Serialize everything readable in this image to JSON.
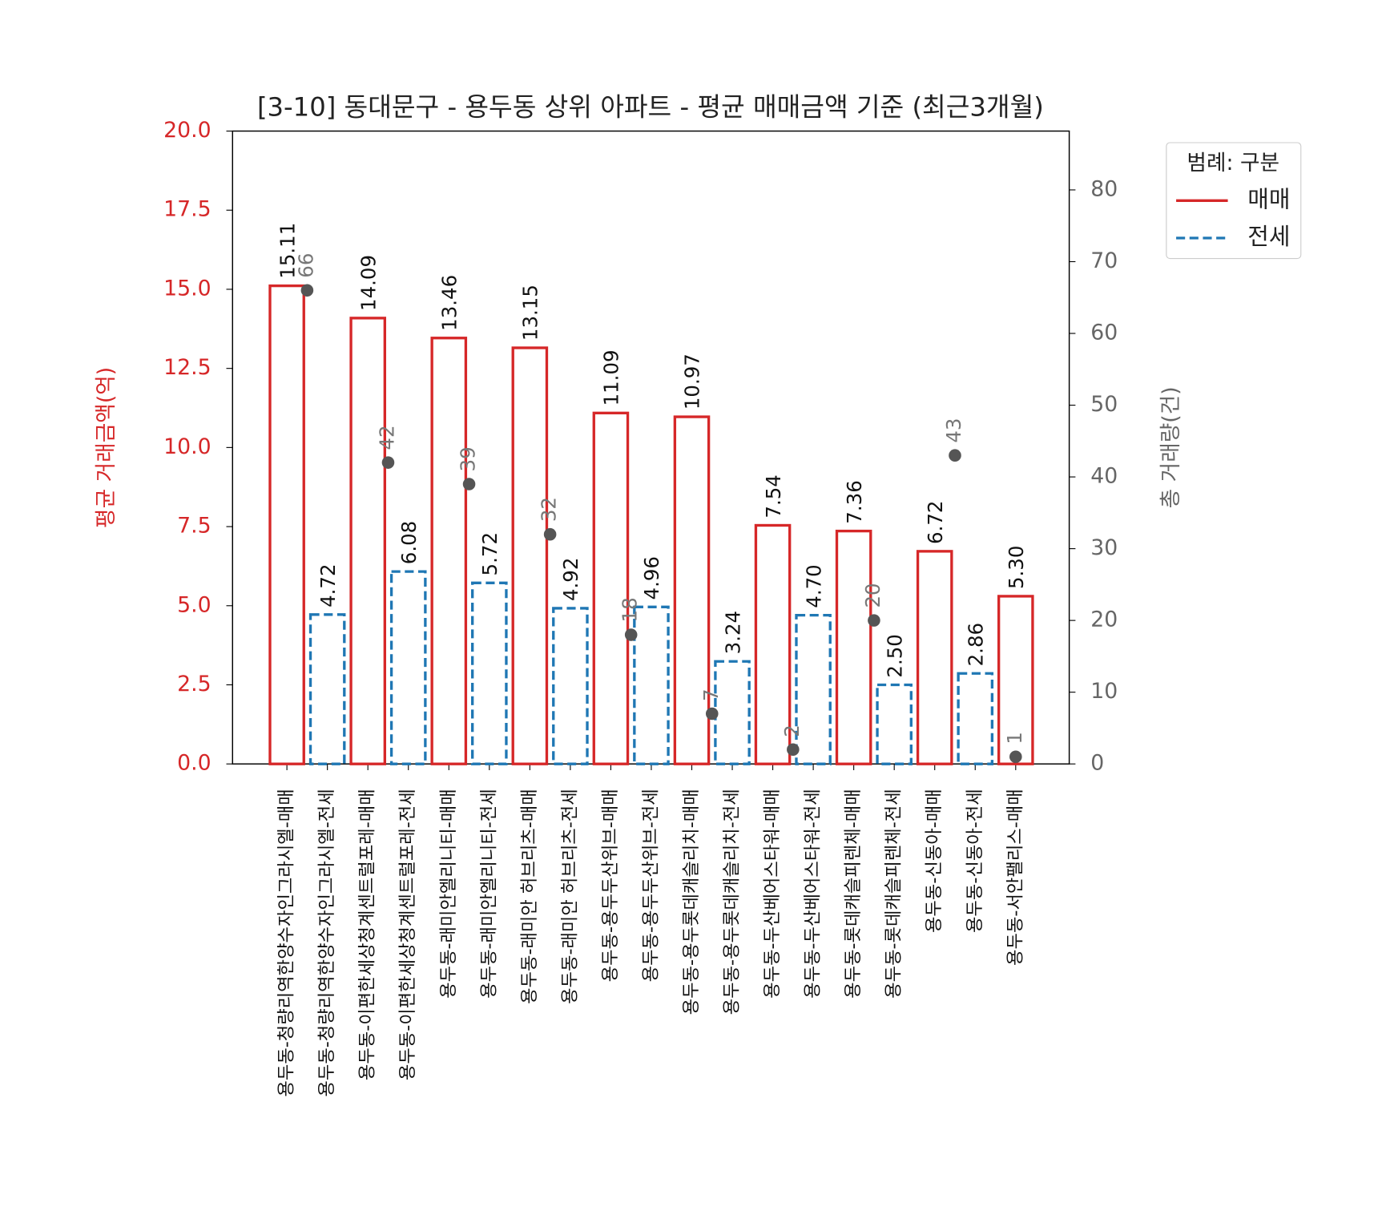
{
  "chart_data": {
    "type": "bar",
    "title": "[3-10] 동대문구 - 용두동 상위 아파트 - 평균 매매금액 기준 (최근3개월)",
    "y_label": "평균 거래금액(억)",
    "y2_label": "총 거래량(건)",
    "legend_title": "범례: 구분",
    "legend": "upper right outside",
    "categories": [
      "용두동-청량리역한양수자인그라시엘-매매",
      "용두동-청량리역한양수자인그라시엘-전세",
      "용두동-이편한세상청계센트럴포레-매매",
      "용두동-이편한세상청계센트럴포레-전세",
      "용두동-래미안엘리니티-매매",
      "용두동-래미안엘리니티-전세",
      "용두동-래미안 허브리츠-매매",
      "용두동-래미안 허브리츠-전세",
      "용두동-용두두산위브-매매",
      "용두동-용두두산위브-전세",
      "용두동-용두롯데캐슬리치-매매",
      "용두동-용두롯데캐슬리치-전세",
      "용두동-두산베어스타워-매매",
      "용두동-두산베어스타워-전세",
      "용두동-롯데캐슬피렌체-매매",
      "용두동-롯데캐슬피렌체-전세",
      "용두동-신동아-매매",
      "용두동-신동아-전세",
      "용두동-서안팰리스-매매"
    ],
    "series": [
      {
        "name": "매매",
        "color": "#d62728",
        "dashed": false,
        "values": [
          15.11,
          null,
          14.09,
          null,
          13.46,
          null,
          13.15,
          null,
          11.09,
          null,
          10.97,
          null,
          7.54,
          null,
          7.36,
          null,
          6.72,
          null,
          5.3
        ],
        "value_labels": [
          "15.11",
          null,
          "14.09",
          null,
          "13.46",
          null,
          "13.15",
          null,
          "11.09",
          null,
          "10.97",
          null,
          "7.54",
          null,
          "7.36",
          null,
          "6.72",
          null,
          "5.30"
        ]
      },
      {
        "name": "전세",
        "color": "#1f77b4",
        "dashed": true,
        "values": [
          null,
          4.72,
          null,
          6.08,
          null,
          5.72,
          null,
          4.92,
          null,
          4.96,
          null,
          3.24,
          null,
          4.7,
          null,
          2.5,
          null,
          2.86,
          null
        ],
        "value_labels": [
          null,
          "4.72",
          null,
          "6.08",
          null,
          "5.72",
          null,
          "4.92",
          null,
          "4.96",
          null,
          "3.24",
          null,
          "4.70",
          null,
          "2.50",
          null,
          "2.86",
          null
        ]
      }
    ],
    "volume": {
      "axis": "y2",
      "color": "#555555",
      "values": [
        66,
        42,
        39,
        32,
        18,
        7,
        2,
        20,
        43,
        1
      ]
    },
    "ylim": [
      0,
      20
    ],
    "yticks": [
      {
        "value": 0,
        "label": "0.0"
      },
      {
        "value": 2.5,
        "label": "2.5"
      },
      {
        "value": 5,
        "label": "5.0"
      },
      {
        "value": 7.5,
        "label": "7.5"
      },
      {
        "value": 10,
        "label": "10.0"
      },
      {
        "value": 12.5,
        "label": "12.5"
      },
      {
        "value": 15,
        "label": "15.0"
      },
      {
        "value": 17.5,
        "label": "17.5"
      },
      {
        "value": 20,
        "label": "20.0"
      }
    ],
    "y2lim": [
      0,
      88.2
    ],
    "y2ticks": [
      0,
      10,
      20,
      30,
      40,
      50,
      60,
      70,
      80
    ]
  }
}
